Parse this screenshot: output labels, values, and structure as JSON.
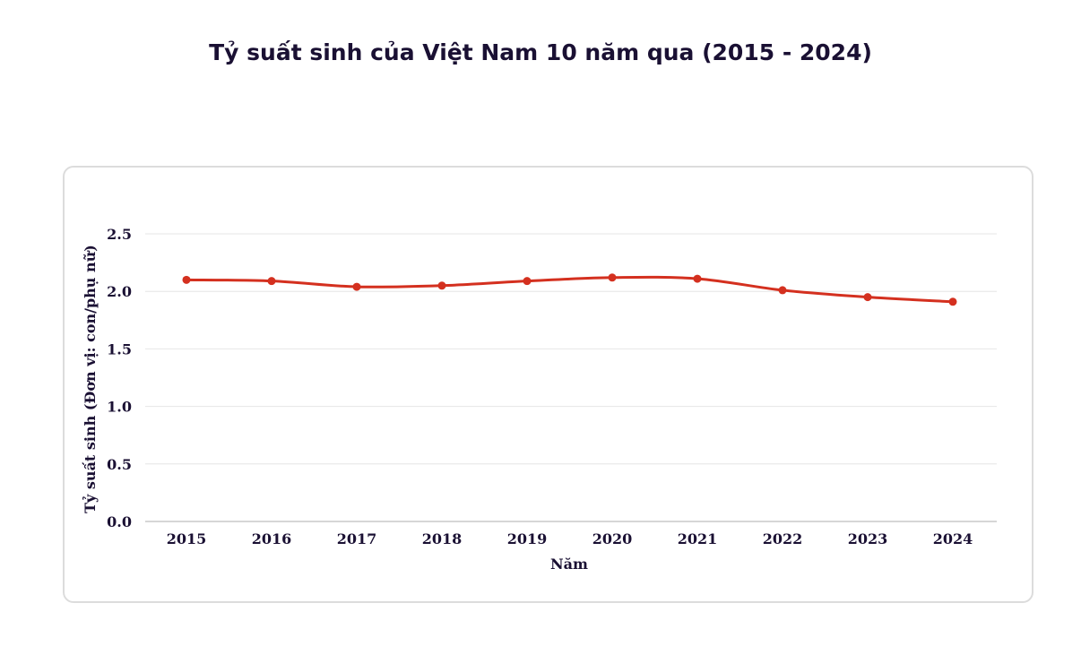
{
  "chart_data": {
    "type": "line",
    "title": "Tỷ suất sinh của Việt Nam 10 năm qua (2015 - 2024)",
    "xlabel": "Năm",
    "ylabel": "Tỷ suất sinh (Đơn vị: con/phụ nữ)",
    "x": [
      "2015",
      "2016",
      "2017",
      "2018",
      "2019",
      "2020",
      "2021",
      "2022",
      "2023",
      "2024"
    ],
    "series": [
      {
        "values": [
          2.1,
          2.09,
          2.04,
          2.05,
          2.09,
          2.12,
          2.11,
          2.01,
          1.95,
          1.91
        ]
      }
    ],
    "ylim": [
      0,
      2.5
    ],
    "yticks": [
      "0.0",
      "0.5",
      "1.0",
      "1.5",
      "2.0",
      "2.5"
    ],
    "grid": true,
    "legend": "none",
    "colors": {
      "line": "#d4301f",
      "grid": "#e6e6e6",
      "axis": "#c8c8c8",
      "text": "#1a1033"
    }
  }
}
